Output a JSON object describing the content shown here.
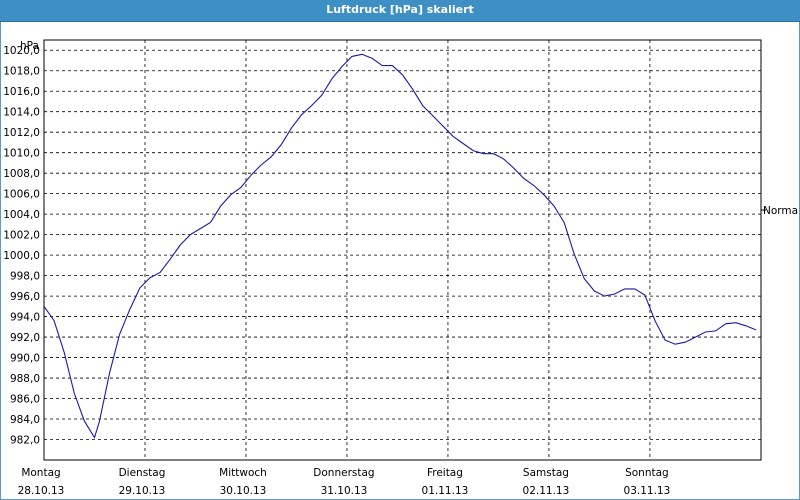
{
  "window": {
    "title": "Luftdruck [hPa] skaliert"
  },
  "chart_data": {
    "type": "line",
    "title": "Luftdruck [hPa] skaliert",
    "ylabel": "hPa",
    "ylim": [
      980.0,
      1021.0
    ],
    "yticks": [
      "982,0",
      "984,0",
      "986,0",
      "988,0",
      "990,0",
      "992,0",
      "994,0",
      "996,0",
      "998,0",
      "1000,0",
      "1002,0",
      "1004,0",
      "1006,0",
      "1008,0",
      "1010,0",
      "1012,0",
      "1014,0",
      "1016,0",
      "1018,0",
      "1020,0"
    ],
    "xlim": [
      0,
      7.1
    ],
    "xticks": [
      {
        "x": 0,
        "day": "Montag",
        "date": "28.10.13"
      },
      {
        "x": 1,
        "day": "Dienstag",
        "date": "29.10.13"
      },
      {
        "x": 2,
        "day": "Mittwoch",
        "date": "30.10.13"
      },
      {
        "x": 3,
        "day": "Donnerstag",
        "date": "31.10.13"
      },
      {
        "x": 4,
        "day": "Freitag",
        "date": "01.11.13"
      },
      {
        "x": 5,
        "day": "Samstag",
        "date": "02.11.13"
      },
      {
        "x": 6,
        "day": "Sonntag",
        "date": "03.11.13"
      }
    ],
    "reference": {
      "label": "Normal",
      "value": 1004.4
    },
    "grid": true,
    "color": "#1a1aaa",
    "series": [
      {
        "values": [
          [
            0.0,
            995.0
          ],
          [
            0.1,
            993.6
          ],
          [
            0.2,
            990.5
          ],
          [
            0.3,
            986.5
          ],
          [
            0.4,
            983.8
          ],
          [
            0.5,
            982.2
          ],
          [
            0.55,
            983.8
          ],
          [
            0.65,
            988.5
          ],
          [
            0.75,
            992.3
          ],
          [
            0.85,
            994.7
          ],
          [
            0.95,
            996.8
          ],
          [
            1.05,
            997.8
          ],
          [
            1.15,
            998.3
          ],
          [
            1.25,
            999.6
          ],
          [
            1.35,
            1001.0
          ],
          [
            1.45,
            1002.0
          ],
          [
            1.55,
            1002.6
          ],
          [
            1.65,
            1003.2
          ],
          [
            1.75,
            1004.8
          ],
          [
            1.85,
            1005.9
          ],
          [
            1.95,
            1006.6
          ],
          [
            2.05,
            1007.8
          ],
          [
            2.15,
            1008.8
          ],
          [
            2.25,
            1009.6
          ],
          [
            2.35,
            1010.8
          ],
          [
            2.45,
            1012.4
          ],
          [
            2.55,
            1013.7
          ],
          [
            2.65,
            1014.6
          ],
          [
            2.75,
            1015.6
          ],
          [
            2.85,
            1017.2
          ],
          [
            2.95,
            1018.4
          ],
          [
            3.05,
            1019.4
          ],
          [
            3.15,
            1019.6
          ],
          [
            3.25,
            1019.2
          ],
          [
            3.35,
            1018.5
          ],
          [
            3.45,
            1018.5
          ],
          [
            3.55,
            1017.6
          ],
          [
            3.65,
            1016.2
          ],
          [
            3.75,
            1014.6
          ],
          [
            3.85,
            1013.6
          ],
          [
            3.95,
            1012.6
          ],
          [
            4.05,
            1011.6
          ],
          [
            4.15,
            1010.9
          ],
          [
            4.25,
            1010.2
          ],
          [
            4.35,
            1009.9
          ],
          [
            4.45,
            1009.9
          ],
          [
            4.55,
            1009.4
          ],
          [
            4.65,
            1008.5
          ],
          [
            4.75,
            1007.5
          ],
          [
            4.85,
            1006.8
          ],
          [
            4.95,
            1005.9
          ],
          [
            5.05,
            1004.8
          ],
          [
            5.15,
            1003.2
          ],
          [
            5.25,
            1000.1
          ],
          [
            5.35,
            997.7
          ],
          [
            5.45,
            996.5
          ],
          [
            5.55,
            996.0
          ],
          [
            5.65,
            996.2
          ],
          [
            5.75,
            996.7
          ],
          [
            5.85,
            996.7
          ],
          [
            5.95,
            996.1
          ],
          [
            6.05,
            993.6
          ],
          [
            6.15,
            991.7
          ],
          [
            6.25,
            991.3
          ],
          [
            6.35,
            991.5
          ],
          [
            6.45,
            992.0
          ],
          [
            6.55,
            992.5
          ],
          [
            6.65,
            992.6
          ],
          [
            6.75,
            993.3
          ],
          [
            6.85,
            993.4
          ],
          [
            6.95,
            993.1
          ],
          [
            7.05,
            992.7
          ]
        ]
      }
    ]
  }
}
